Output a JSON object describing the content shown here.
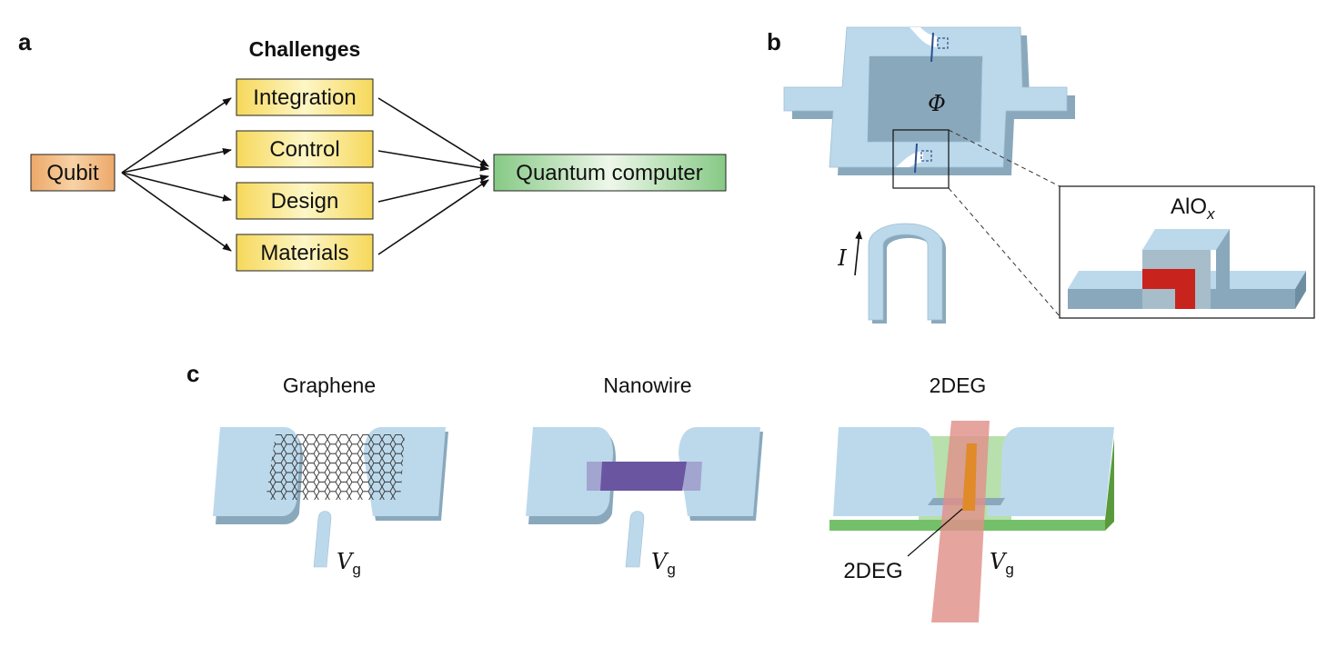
{
  "panels": {
    "a": "a",
    "b": "b",
    "c": "c"
  },
  "flow": {
    "heading": "Challenges",
    "source": "Qubit",
    "challenges": [
      "Integration",
      "Control",
      "Design",
      "Materials"
    ],
    "target": "Quantum computer",
    "colors": {
      "source": "#f2b26e",
      "challenge": "#f8e070",
      "target": "#8fcf8e"
    }
  },
  "squid": {
    "flux_symbol": "Φ",
    "current_symbol": "I",
    "oxide_base": "AlO",
    "oxide_subscript": "x",
    "colors": {
      "metal": "#bcd9ec",
      "metal_side": "#8aa8bc",
      "oxide": "#c8231c"
    }
  },
  "devices": {
    "titles": [
      "Graphene",
      "Nanowire",
      "2DEG"
    ],
    "gate_base": "V",
    "gate_subscript": "g",
    "twodeg_label": "2DEG",
    "colors": {
      "nanowire": "#7a64a8",
      "gate_strip": "#e0908a",
      "substrate": "#74c06a",
      "channel": "#e08a2a"
    }
  }
}
